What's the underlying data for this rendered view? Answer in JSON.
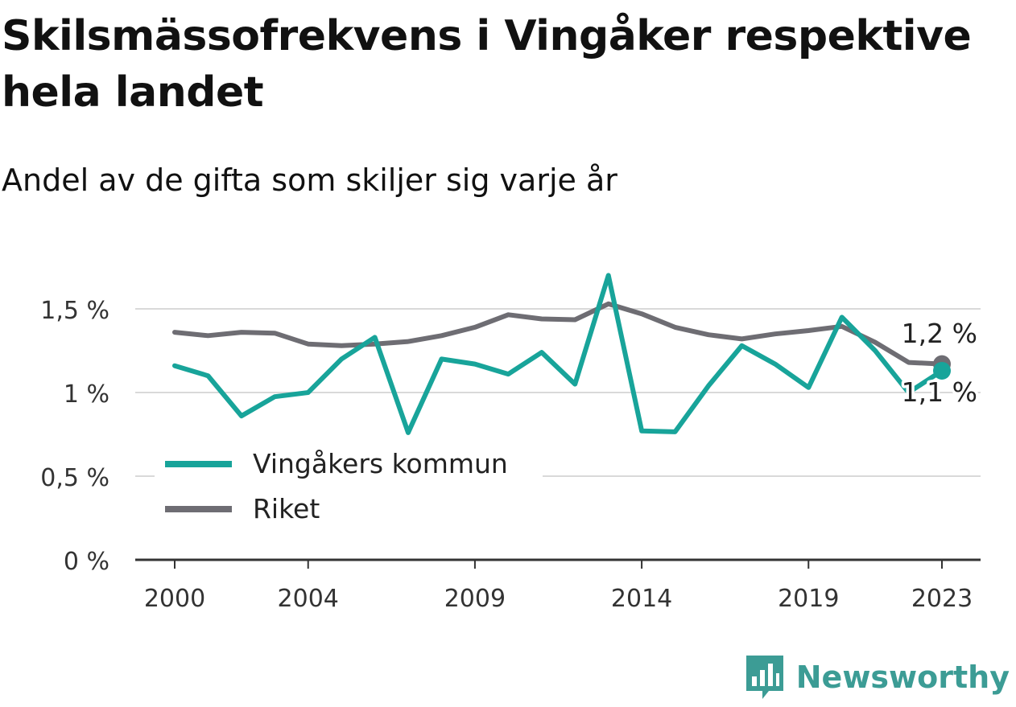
{
  "title": "Skilsmässofrekvens i Vingåker respektive hela landet",
  "subtitle": "Andel av de gifta som skiljer sig varje år",
  "brand": {
    "name": "Newsworthy",
    "icon": "newsworthy-logo-icon",
    "color": "#3c9c95"
  },
  "chart_data": {
    "type": "line",
    "title": "Skilsmässofrekvens i Vingåker respektive hela landet",
    "subtitle": "Andel av de gifta som skiljer sig varje år",
    "x": [
      2000,
      2001,
      2002,
      2003,
      2004,
      2005,
      2006,
      2007,
      2008,
      2009,
      2010,
      2011,
      2012,
      2013,
      2014,
      2015,
      2016,
      2017,
      2018,
      2019,
      2020,
      2021,
      2022,
      2023
    ],
    "x_ticks": [
      "2000",
      "2004",
      "2009",
      "2014",
      "2019",
      "2023"
    ],
    "y_ticks": [
      "0 %",
      "0,5 %",
      "1 %",
      "1,5 %"
    ],
    "ylim": [
      0,
      1.5
    ],
    "grid": true,
    "legend_position": "bottom-left",
    "series": [
      {
        "name": "Riket",
        "color": "#6e6d73",
        "values": [
          1.36,
          1.34,
          1.36,
          1.355,
          1.29,
          1.28,
          1.29,
          1.305,
          1.34,
          1.39,
          1.465,
          1.44,
          1.435,
          1.53,
          1.47,
          1.39,
          1.345,
          1.32,
          1.35,
          1.37,
          1.395,
          1.3,
          1.18,
          1.17
        ],
        "end_label": "1,2 %"
      },
      {
        "name": "Vingåkers kommun",
        "color": "#18a49a",
        "values": [
          1.16,
          1.1,
          0.86,
          0.975,
          1.0,
          1.2,
          1.33,
          0.76,
          1.2,
          1.17,
          1.11,
          1.24,
          1.05,
          1.7,
          0.77,
          0.765,
          1.04,
          1.28,
          1.17,
          1.03,
          1.45,
          1.25,
          1.0,
          1.13
        ],
        "end_label": "1,1 %"
      }
    ]
  }
}
